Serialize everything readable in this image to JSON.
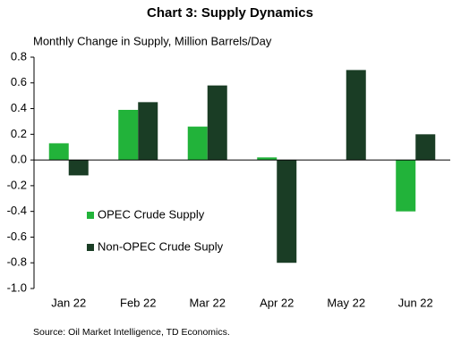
{
  "chart_data": {
    "type": "bar",
    "title": "Chart 3: Supply Dynamics",
    "subtitle": "Monthly Change in Supply, Million Barrels/Day",
    "source": "Source: Oil Market Intelligence,  TD Economics.",
    "categories": [
      "Jan 22",
      "Feb 22",
      "Mar 22",
      "Apr 22",
      "May 22",
      "Jun 22"
    ],
    "series": [
      {
        "name": "OPEC Crude Supply",
        "color": "#22b33a",
        "values": [
          0.13,
          0.39,
          0.26,
          0.02,
          0,
          -0.4
        ]
      },
      {
        "name": "Non-OPEC Crude Suply",
        "color": "#1a3d25",
        "values": [
          -0.12,
          0.45,
          0.58,
          -0.8,
          0.7,
          0.2
        ]
      }
    ],
    "ylim": [
      -1.0,
      0.8
    ],
    "yticks": [
      0.8,
      0.6,
      0.4,
      0.2,
      {
        "value": 0,
        "label": "0.0"
      },
      -0.2,
      -0.4,
      -0.6,
      -0.8,
      {
        "value": -1,
        "label": "-1.0"
      }
    ],
    "grid": false,
    "legend": "left"
  }
}
